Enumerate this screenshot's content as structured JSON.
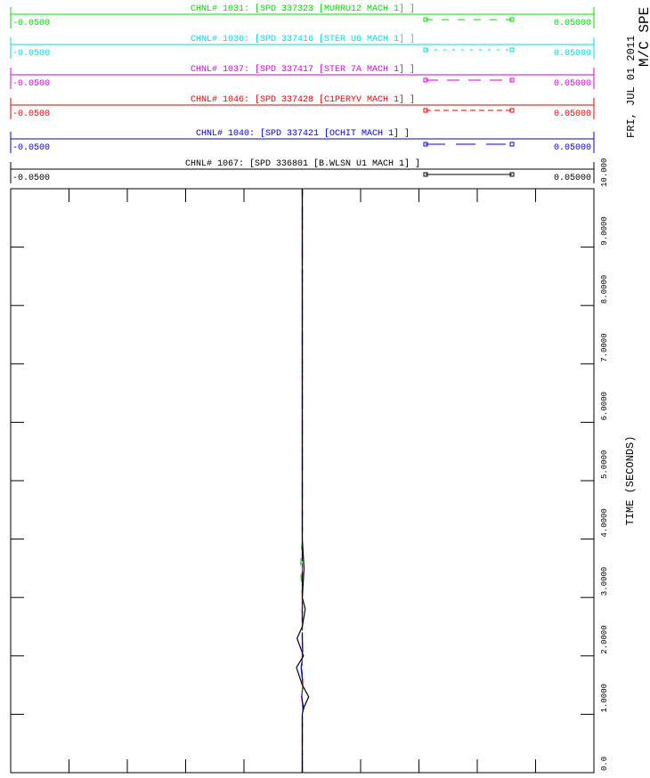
{
  "chart_data": {
    "type": "line",
    "date": "FRI, JUL 01 2011",
    "subtitle": "M/C SPE",
    "ylabel": "TIME (SECONDS)",
    "ylim": [
      0,
      10
    ],
    "yticks": [
      {
        "value": 0,
        "label": "0.0"
      },
      {
        "value": 1,
        "label": "1.0000"
      },
      {
        "value": 2,
        "label": "2.0000"
      },
      {
        "value": 3,
        "label": "3.0000"
      },
      {
        "value": 4,
        "label": "4.0000"
      },
      {
        "value": 5,
        "label": "5.0000"
      },
      {
        "value": 6,
        "label": "6.0000"
      },
      {
        "value": 7,
        "label": "7.0000"
      },
      {
        "value": 8,
        "label": "8.0000"
      },
      {
        "value": 9,
        "label": "9.0000"
      },
      {
        "value": 10,
        "label": "10.000"
      }
    ],
    "x": [
      0,
      0.5,
      1,
      1.1,
      1.3,
      1.5,
      1.8,
      2,
      2.3,
      2.5,
      2.8,
      3,
      3.5,
      4,
      5,
      6,
      7,
      8,
      9,
      10
    ],
    "series": [
      {
        "name": "CHNL# 1031: [SPD 337323 [MURRU12 MACH 1]   ]",
        "color": "#00dd00",
        "linestyle": "dashed",
        "range": [
          {
            "value": -0.05,
            "label": "-0.0500"
          },
          {
            "value": 0.05,
            "label": "0.05000"
          }
        ],
        "values": [
          0,
          0,
          0,
          0.0003,
          -0.0002,
          0.0002,
          -0.0002,
          0.0001,
          0,
          0,
          0,
          0,
          -0.0003,
          0,
          0,
          0,
          0,
          0,
          0,
          0
        ]
      },
      {
        "name": "CHNL# 1036: [SPD 337416 [STER U6 MACH 1]   ]",
        "color": "#00dddd",
        "linestyle": "dotted",
        "range": [
          {
            "value": -0.05,
            "label": "-0.0500"
          },
          {
            "value": 0.05,
            "label": "0.05000"
          }
        ],
        "values": [
          0,
          0,
          0,
          0.0002,
          -0.0001,
          0.0001,
          -0.0001,
          0.0001,
          0,
          0,
          0,
          0,
          0,
          0,
          0,
          0,
          0,
          0,
          0,
          0
        ]
      },
      {
        "name": "CHNL# 1037: [SPD 337417 [STER 7A MACH 1]   ]",
        "color": "#dd00dd",
        "linestyle": "longdash",
        "range": [
          {
            "value": -0.05,
            "label": "-0.0500"
          },
          {
            "value": 0.05,
            "label": "0.05000"
          }
        ],
        "values": [
          0,
          0,
          0,
          0.0001,
          -0.0001,
          0.0001,
          -0.0001,
          0,
          0,
          0,
          0,
          0,
          0,
          0,
          0,
          0,
          0,
          0,
          0,
          0
        ]
      },
      {
        "name": "CHNL# 1046: [SPD 337428 [C1PERYV MACH 1]   ]",
        "color": "#ee0000",
        "linestyle": "shortdash",
        "range": [
          {
            "value": -0.05,
            "label": "-0.0500"
          },
          {
            "value": 0.05,
            "label": "0.05000"
          }
        ],
        "values": [
          0,
          0,
          0,
          0.0001,
          -0.0001,
          0.0001,
          -0.0001,
          0,
          0,
          0,
          0,
          0,
          0,
          0,
          0,
          0,
          0,
          0,
          0,
          0
        ]
      },
      {
        "name": "CHNL# 1040: [SPD 337421 [OCHIT MACH 1]   ]",
        "color": "#0000dd",
        "linestyle": "widedash",
        "range": [
          {
            "value": -0.05,
            "label": "-0.0500"
          },
          {
            "value": 0.05,
            "label": "0.05000"
          }
        ],
        "values": [
          0,
          0,
          0,
          0.0002,
          -0.0001,
          0.0001,
          -0.0002,
          0.0001,
          0,
          0,
          0,
          0,
          0,
          0,
          0,
          0,
          0,
          0,
          0,
          0
        ]
      },
      {
        "name": "CHNL# 1067: [SPD 336801 [B.WLSN U1 MACH 1]  ]",
        "color": "#000000",
        "linestyle": "solid",
        "range": [
          {
            "value": -0.05,
            "label": "-0.0500"
          },
          {
            "value": 0.05,
            "label": "0.05000"
          }
        ],
        "values": [
          0,
          0,
          0,
          0.0002,
          0.0011,
          0,
          -0.001,
          0.0002,
          -0.0009,
          0,
          0.0005,
          0,
          0.0003,
          0,
          0,
          0,
          0,
          0,
          0,
          0
        ]
      }
    ]
  }
}
